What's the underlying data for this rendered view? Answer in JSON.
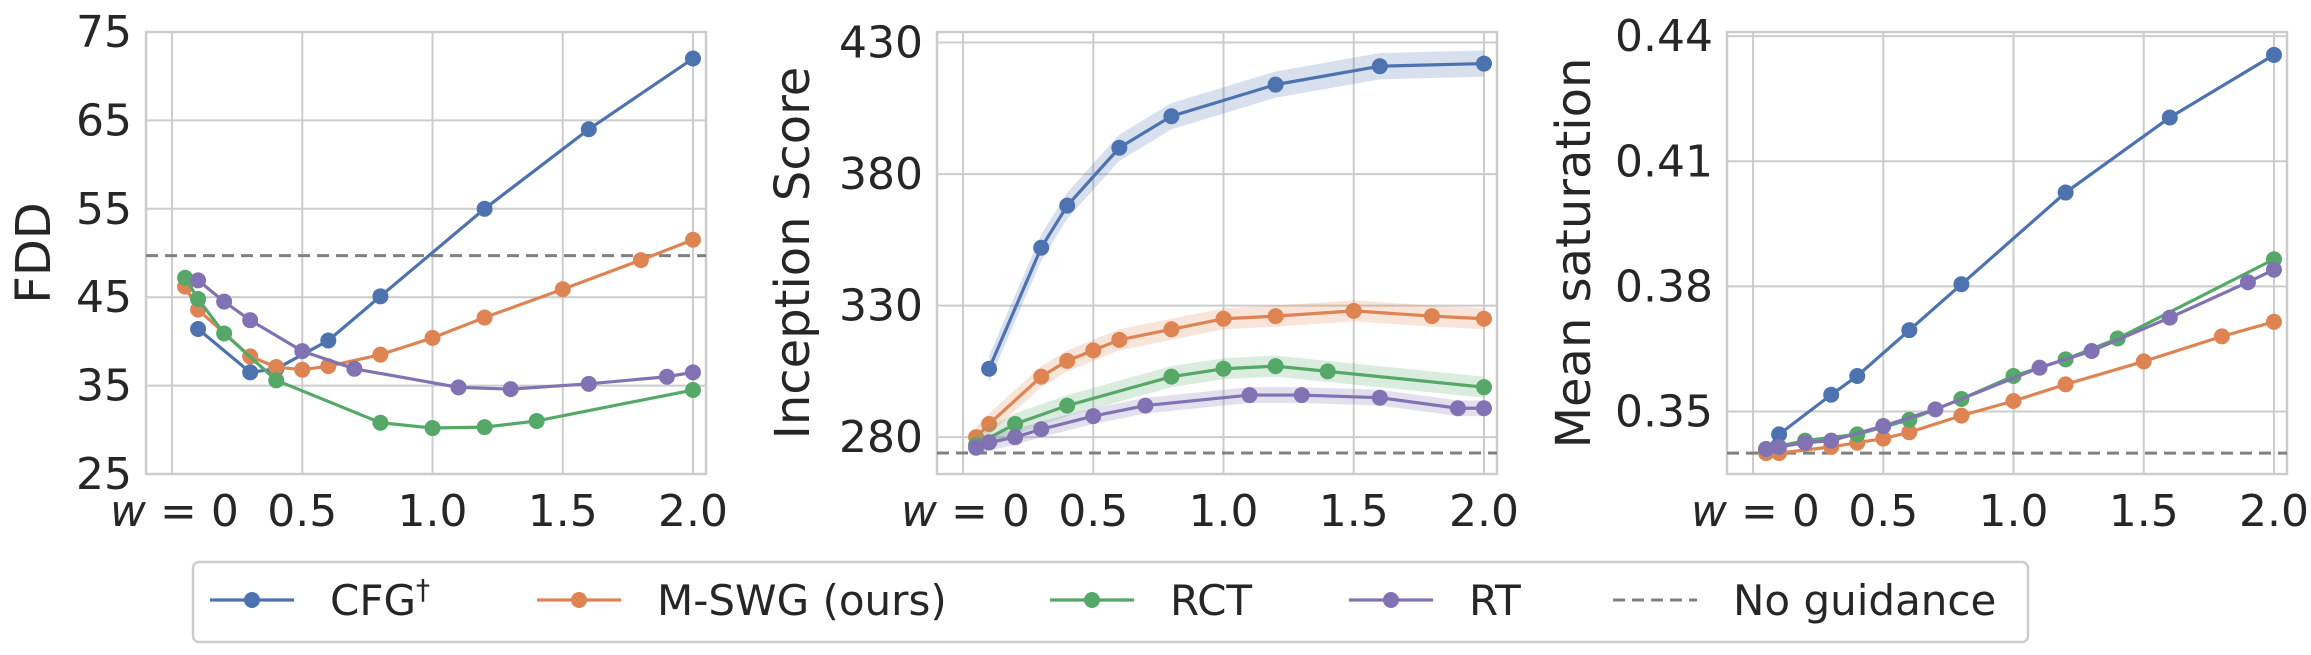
{
  "colors": {
    "CFG": "#4C72B0",
    "M-SWG": "#DD8452",
    "RCT": "#55A868",
    "RT": "#8172B3",
    "No guidance": "#808080"
  },
  "legend": {
    "placement": "bottom-center",
    "items": [
      {
        "key": "CFG",
        "label": "CFG",
        "sup": "†"
      },
      {
        "key": "M-SWG",
        "label": "M-SWG (ours)"
      },
      {
        "key": "RCT",
        "label": "RCT"
      },
      {
        "key": "RT",
        "label": "RT"
      },
      {
        "key": "No guidance",
        "label": "No guidance",
        "dashed": true
      }
    ]
  },
  "chart_data": [
    {
      "type": "line",
      "ylabel": "FDD",
      "xlabel_var": "w",
      "xtick_labels": [
        "= 0",
        "0.5",
        "1.0",
        "1.5",
        "2.0"
      ],
      "xticks": [
        0,
        0.5,
        1.0,
        1.5,
        2.0
      ],
      "xlim": [
        -0.1,
        2.05
      ],
      "yticks": [
        25,
        35,
        45,
        55,
        65,
        75
      ],
      "ytick_labels": [
        "25",
        "35",
        "45",
        "55",
        "65",
        "75"
      ],
      "ylim": [
        25,
        75
      ],
      "grid": true,
      "no_guidance": 49.7,
      "series": [
        {
          "name": "CFG",
          "x": [
            0.1,
            0.3,
            0.4,
            0.6,
            0.8,
            1.2,
            1.6,
            2.0
          ],
          "y": [
            41.4,
            36.5,
            36.9,
            40.1,
            45.1,
            55.0,
            64.0,
            72.0
          ]
        },
        {
          "name": "M-SWG",
          "x": [
            0.05,
            0.1,
            0.3,
            0.4,
            0.5,
            0.6,
            0.8,
            1.0,
            1.2,
            1.5,
            1.8,
            2.0
          ],
          "y": [
            46.2,
            43.6,
            38.3,
            37.1,
            36.8,
            37.2,
            38.5,
            40.4,
            42.7,
            45.9,
            49.2,
            51.5
          ]
        },
        {
          "name": "RCT",
          "x": [
            0.05,
            0.1,
            0.2,
            0.4,
            0.8,
            1.0,
            1.2,
            1.4,
            2.0
          ],
          "y": [
            47.2,
            44.8,
            40.9,
            35.6,
            30.8,
            30.2,
            30.3,
            31.0,
            34.5
          ]
        },
        {
          "name": "RT",
          "x": [
            0.1,
            0.2,
            0.3,
            0.5,
            0.7,
            1.1,
            1.3,
            1.6,
            1.9,
            2.0
          ],
          "y": [
            46.9,
            44.5,
            42.4,
            38.9,
            36.9,
            34.8,
            34.6,
            35.2,
            36.0,
            36.5
          ]
        }
      ]
    },
    {
      "type": "line",
      "ylabel": "Inception Score",
      "xlabel_var": "w",
      "xtick_labels": [
        "= 0",
        "0.5",
        "1.0",
        "1.5",
        "2.0"
      ],
      "xticks": [
        0,
        0.5,
        1.0,
        1.5,
        2.0
      ],
      "xlim": [
        -0.1,
        2.05
      ],
      "yticks": [
        280,
        330,
        380,
        430
      ],
      "ytick_labels": [
        "280",
        "330",
        "380",
        "430"
      ],
      "ylim": [
        266,
        434
      ],
      "grid": true,
      "no_guidance": 274,
      "series": [
        {
          "name": "CFG",
          "x": [
            0.1,
            0.3,
            0.4,
            0.6,
            0.8,
            1.2,
            1.6,
            2.0
          ],
          "y": [
            306,
            352,
            368,
            390,
            402,
            414,
            421,
            422
          ],
          "band": 5
        },
        {
          "name": "M-SWG",
          "x": [
            0.05,
            0.1,
            0.3,
            0.4,
            0.5,
            0.6,
            0.8,
            1.0,
            1.2,
            1.5,
            1.8,
            2.0
          ],
          "y": [
            280,
            285,
            303,
            309,
            313,
            317,
            321,
            325,
            326,
            328,
            326,
            325
          ],
          "band": 4
        },
        {
          "name": "RCT",
          "x": [
            0.05,
            0.2,
            0.4,
            0.8,
            1.0,
            1.2,
            1.4,
            2.0
          ],
          "y": [
            277,
            285,
            292,
            303,
            306,
            307,
            305,
            299
          ],
          "band": 4
        },
        {
          "name": "RT",
          "x": [
            0.05,
            0.1,
            0.2,
            0.3,
            0.5,
            0.7,
            1.1,
            1.3,
            1.6,
            1.9,
            2.0
          ],
          "y": [
            276,
            278,
            280,
            283,
            288,
            292,
            296,
            296,
            295,
            291,
            291
          ],
          "band": 3
        }
      ]
    },
    {
      "type": "line",
      "ylabel": "Mean saturation",
      "xlabel_var": "w",
      "xtick_labels": [
        "= 0",
        "0.5",
        "1.0",
        "1.5",
        "2.0"
      ],
      "xticks": [
        0,
        0.5,
        1.0,
        1.5,
        2.0
      ],
      "xlim": [
        -0.1,
        2.05
      ],
      "yticks": [
        0.35,
        0.38,
        0.41,
        0.44
      ],
      "ytick_labels": [
        "0.35",
        "0.38",
        "0.41",
        "0.44"
      ],
      "ylim": [
        0.335,
        0.441
      ],
      "grid": true,
      "no_guidance": 0.34,
      "series": [
        {
          "name": "CFG",
          "x": [
            0.05,
            0.1,
            0.3,
            0.4,
            0.6,
            0.8,
            1.2,
            1.6,
            2.0
          ],
          "y": [
            0.3405,
            0.3445,
            0.354,
            0.3585,
            0.3695,
            0.3805,
            0.4025,
            0.4205,
            0.4355
          ]
        },
        {
          "name": "M-SWG",
          "x": [
            0.05,
            0.1,
            0.3,
            0.4,
            0.5,
            0.6,
            0.8,
            1.0,
            1.2,
            1.5,
            1.8,
            2.0
          ],
          "y": [
            0.34,
            0.34,
            0.3415,
            0.3425,
            0.3435,
            0.345,
            0.349,
            0.3525,
            0.3565,
            0.362,
            0.368,
            0.3715
          ]
        },
        {
          "name": "RCT",
          "x": [
            0.05,
            0.2,
            0.4,
            0.6,
            0.8,
            1.0,
            1.2,
            1.4,
            2.0
          ],
          "y": [
            0.341,
            0.343,
            0.3445,
            0.348,
            0.353,
            0.3585,
            0.3625,
            0.3675,
            0.3865
          ]
        },
        {
          "name": "RT",
          "x": [
            0.05,
            0.1,
            0.2,
            0.3,
            0.5,
            0.7,
            1.1,
            1.3,
            1.6,
            1.9,
            2.0
          ],
          "y": [
            0.341,
            0.3415,
            0.3425,
            0.343,
            0.3465,
            0.3505,
            0.3605,
            0.3645,
            0.3725,
            0.381,
            0.384
          ]
        }
      ]
    }
  ]
}
